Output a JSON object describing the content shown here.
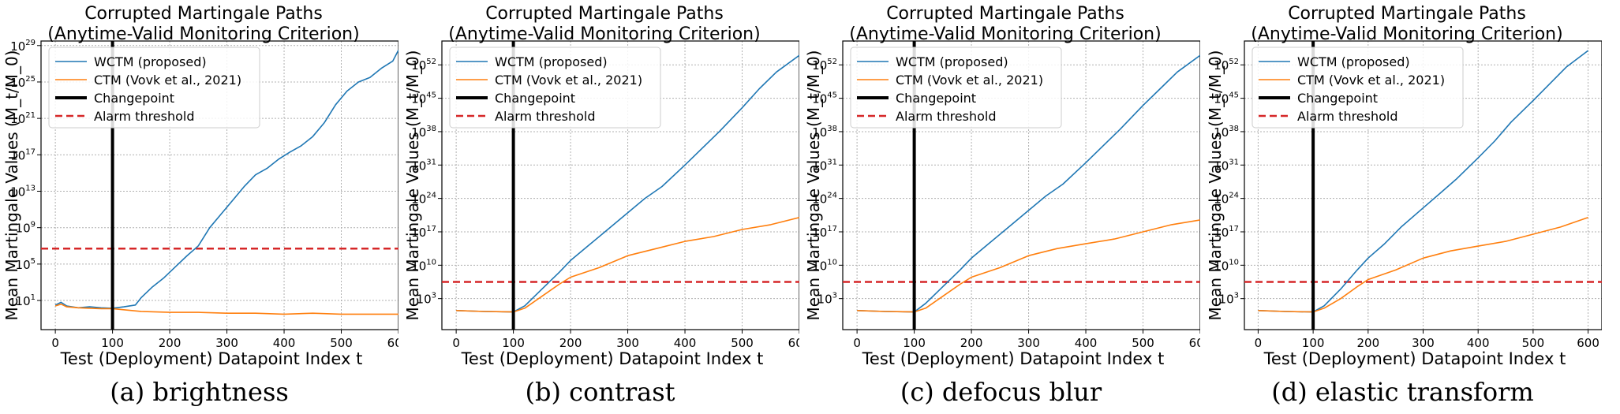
{
  "colors": {
    "wctm": "#1f77b4",
    "ctm": "#ff7f0e",
    "changepoint": "#000000",
    "alarm": "#d62728",
    "grid": "#b0b0b0"
  },
  "chart_data": [
    {
      "type": "line",
      "title": [
        "Corrupted Martingale Paths",
        "(Anytime-Valid Monitoring Criterion)"
      ],
      "xlabel": "Test (Deployment) Datapoint Index t",
      "ylabel": "Mean Martingale Values (M_t/M_0)",
      "xlim": [
        -25,
        600
      ],
      "xticks": [
        0,
        100,
        200,
        300,
        400,
        500,
        600
      ],
      "yscale": "log",
      "ylim_log10": [
        -2.2,
        29.5
      ],
      "yticks": [
        {
          "base": "10",
          "exp": "1",
          "log": 1
        },
        {
          "base": "10",
          "exp": "5",
          "log": 5
        },
        {
          "base": "10",
          "exp": "9",
          "log": 9
        },
        {
          "base": "10",
          "exp": "13",
          "log": 13
        },
        {
          "base": "10",
          "exp": "17",
          "log": 17
        },
        {
          "base": "10",
          "exp": "21",
          "log": 21
        },
        {
          "base": "10",
          "exp": "25",
          "log": 25
        },
        {
          "base": "10",
          "exp": "29",
          "log": 29
        }
      ],
      "grid": true,
      "legend": "upper left",
      "changepoint": 100,
      "alarm_threshold_log10": 6.7,
      "series": [
        {
          "name": "WCTM (proposed)",
          "x": [
            0,
            10,
            20,
            40,
            60,
            80,
            100,
            120,
            140,
            150,
            170,
            190,
            210,
            230,
            250,
            270,
            290,
            310,
            330,
            350,
            370,
            390,
            410,
            430,
            450,
            470,
            490,
            510,
            530,
            550,
            570,
            590,
            600
          ],
          "log10": [
            0.5,
            0.8,
            0.4,
            0.2,
            0.3,
            0.2,
            0.15,
            0.3,
            0.5,
            1.3,
            2.5,
            3.5,
            4.7,
            5.9,
            7.0,
            9.0,
            10.5,
            12.0,
            13.5,
            14.8,
            15.5,
            16.5,
            17.3,
            18.0,
            19.0,
            20.5,
            22.5,
            24.0,
            25.0,
            25.5,
            26.5,
            27.3,
            28.5
          ]
        },
        {
          "name": "CTM (Vovk et al., 2021)",
          "x": [
            0,
            10,
            20,
            40,
            60,
            80,
            100,
            150,
            200,
            250,
            300,
            350,
            400,
            450,
            500,
            550,
            600
          ],
          "log10": [
            0.4,
            0.6,
            0.3,
            0.2,
            0.15,
            0.1,
            0.1,
            -0.2,
            -0.3,
            -0.3,
            -0.4,
            -0.4,
            -0.5,
            -0.4,
            -0.5,
            -0.5,
            -0.5
          ]
        }
      ],
      "legend_entries": [
        "WCTM (proposed)",
        "CTM (Vovk et al., 2021)",
        "Changepoint",
        "Alarm threshold"
      ],
      "caption": "(a) brightness"
    },
    {
      "type": "line",
      "title": [
        "Corrupted Martingale Paths",
        "(Anytime-Valid Monitoring Criterion)"
      ],
      "xlabel": "Test (Deployment) Datapoint Index t",
      "ylabel": "Mean Martingale Values (M_t/M_0)",
      "xlim": [
        -25,
        600
      ],
      "xticks": [
        0,
        100,
        200,
        300,
        400,
        500,
        600
      ],
      "yscale": "log",
      "ylim_log10": [
        -3.5,
        57
      ],
      "yticks": [
        {
          "base": "10",
          "exp": "3",
          "log": 3
        },
        {
          "base": "10",
          "exp": "10",
          "log": 10
        },
        {
          "base": "10",
          "exp": "17",
          "log": 17
        },
        {
          "base": "10",
          "exp": "24",
          "log": 24
        },
        {
          "base": "10",
          "exp": "31",
          "log": 31
        },
        {
          "base": "10",
          "exp": "38",
          "log": 38
        },
        {
          "base": "10",
          "exp": "45",
          "log": 45
        },
        {
          "base": "10",
          "exp": "52",
          "log": 52
        }
      ],
      "grid": true,
      "legend": "upper left",
      "changepoint": 100,
      "alarm_threshold_log10": 6.5,
      "series": [
        {
          "name": "WCTM (proposed)",
          "x": [
            0,
            50,
            100,
            120,
            150,
            180,
            200,
            230,
            260,
            300,
            330,
            360,
            400,
            430,
            460,
            500,
            530,
            560,
            600
          ],
          "log10": [
            0.5,
            0.3,
            0.2,
            1.5,
            5.0,
            8.5,
            11.0,
            14.0,
            17.0,
            21.0,
            24.0,
            26.5,
            31.0,
            34.5,
            38.0,
            43.0,
            47.0,
            50.5,
            54.0
          ]
        },
        {
          "name": "CTM (Vovk et al., 2021)",
          "x": [
            0,
            50,
            100,
            120,
            150,
            180,
            200,
            250,
            300,
            350,
            400,
            450,
            500,
            550,
            600
          ],
          "log10": [
            0.5,
            0.3,
            0.2,
            1.0,
            3.5,
            6.0,
            7.5,
            9.5,
            12.0,
            13.5,
            15.0,
            16.0,
            17.5,
            18.5,
            20.0
          ]
        }
      ],
      "legend_entries": [
        "WCTM (proposed)",
        "CTM (Vovk et al., 2021)",
        "Changepoint",
        "Alarm threshold"
      ],
      "caption": "(b) contrast"
    },
    {
      "type": "line",
      "title": [
        "Corrupted Martingale Paths",
        "(Anytime-Valid Monitoring Criterion)"
      ],
      "xlabel": "Test (Deployment) Datapoint Index t",
      "ylabel": "Mean Martingale Values (M_t/M_0)",
      "xlim": [
        -25,
        600
      ],
      "xticks": [
        0,
        100,
        200,
        300,
        400,
        500,
        600
      ],
      "yscale": "log",
      "ylim_log10": [
        -3.5,
        57
      ],
      "yticks": [
        {
          "base": "10",
          "exp": "3",
          "log": 3
        },
        {
          "base": "10",
          "exp": "10",
          "log": 10
        },
        {
          "base": "10",
          "exp": "17",
          "log": 17
        },
        {
          "base": "10",
          "exp": "24",
          "log": 24
        },
        {
          "base": "10",
          "exp": "31",
          "log": 31
        },
        {
          "base": "10",
          "exp": "38",
          "log": 38
        },
        {
          "base": "10",
          "exp": "45",
          "log": 45
        },
        {
          "base": "10",
          "exp": "52",
          "log": 52
        }
      ],
      "grid": true,
      "legend": "upper left",
      "changepoint": 100,
      "alarm_threshold_log10": 6.5,
      "series": [
        {
          "name": "WCTM (proposed)",
          "x": [
            0,
            50,
            100,
            120,
            150,
            180,
            200,
            230,
            260,
            300,
            330,
            360,
            400,
            430,
            460,
            500,
            530,
            560,
            600
          ],
          "log10": [
            0.5,
            0.3,
            0.2,
            2.0,
            5.5,
            9.0,
            11.5,
            14.5,
            17.5,
            21.5,
            24.5,
            27.0,
            31.5,
            35.0,
            38.5,
            43.5,
            47.0,
            50.5,
            54.0
          ]
        },
        {
          "name": "CTM (Vovk et al., 2021)",
          "x": [
            0,
            50,
            100,
            120,
            150,
            180,
            200,
            250,
            300,
            350,
            400,
            450,
            500,
            550,
            600
          ],
          "log10": [
            0.5,
            0.3,
            0.2,
            1.0,
            3.5,
            6.0,
            7.5,
            9.5,
            12.0,
            13.5,
            14.5,
            15.5,
            17.0,
            18.5,
            19.5
          ]
        }
      ],
      "legend_entries": [
        "WCTM (proposed)",
        "CTM (Vovk et al., 2021)",
        "Changepoint",
        "Alarm threshold"
      ],
      "caption": "(c) defocus blur"
    },
    {
      "type": "line",
      "title": [
        "Corrupted Martingale Paths",
        "(Anytime-Valid Monitoring Criterion)"
      ],
      "xlabel": "Test (Deployment) Datapoint Index t",
      "ylabel": "Mean Martingale Values (M_t/M_0)",
      "xlim": [
        -25,
        625
      ],
      "xticks": [
        0,
        100,
        200,
        300,
        400,
        500,
        600
      ],
      "yscale": "log",
      "ylim_log10": [
        -3.5,
        57
      ],
      "yticks": [
        {
          "base": "10",
          "exp": "3",
          "log": 3
        },
        {
          "base": "10",
          "exp": "10",
          "log": 10
        },
        {
          "base": "10",
          "exp": "17",
          "log": 17
        },
        {
          "base": "10",
          "exp": "24",
          "log": 24
        },
        {
          "base": "10",
          "exp": "31",
          "log": 31
        },
        {
          "base": "10",
          "exp": "38",
          "log": 38
        },
        {
          "base": "10",
          "exp": "45",
          "log": 45
        },
        {
          "base": "10",
          "exp": "52",
          "log": 52
        }
      ],
      "grid": true,
      "legend": "upper left",
      "changepoint": 100,
      "alarm_threshold_log10": 6.5,
      "series": [
        {
          "name": "WCTM (proposed)",
          "x": [
            0,
            50,
            100,
            120,
            150,
            180,
            200,
            230,
            260,
            300,
            330,
            360,
            400,
            430,
            460,
            500,
            530,
            560,
            600
          ],
          "log10": [
            0.5,
            0.3,
            0.2,
            1.5,
            5.0,
            9.0,
            11.5,
            14.5,
            18.0,
            22.0,
            25.0,
            28.0,
            32.5,
            36.0,
            40.0,
            44.5,
            48.0,
            51.5,
            55.0
          ]
        },
        {
          "name": "CTM (Vovk et al., 2021)",
          "x": [
            0,
            50,
            100,
            120,
            150,
            180,
            200,
            250,
            300,
            350,
            400,
            450,
            500,
            550,
            600
          ],
          "log10": [
            0.5,
            0.3,
            0.2,
            1.0,
            3.0,
            5.5,
            7.0,
            9.0,
            11.5,
            13.0,
            14.0,
            15.0,
            16.5,
            18.0,
            20.0
          ]
        }
      ],
      "legend_entries": [
        "WCTM (proposed)",
        "CTM (Vovk et al., 2021)",
        "Changepoint",
        "Alarm threshold"
      ],
      "caption": "(d) elastic transform"
    }
  ]
}
